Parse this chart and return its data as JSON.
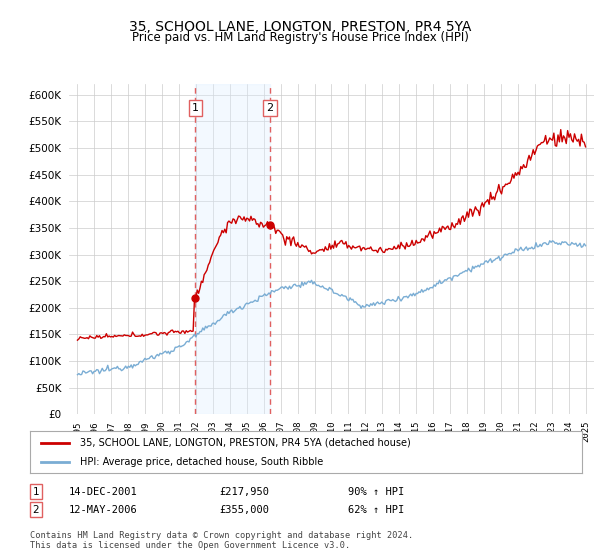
{
  "title": "35, SCHOOL LANE, LONGTON, PRESTON, PR4 5YA",
  "subtitle": "Price paid vs. HM Land Registry's House Price Index (HPI)",
  "sale1_date": 2001.95,
  "sale1_price": 217950,
  "sale2_date": 2006.37,
  "sale2_price": 355000,
  "sale1_display": "14-DEC-2001",
  "sale1_price_display": "£217,950",
  "sale1_hpi": "90% ↑ HPI",
  "sale2_display": "12-MAY-2006",
  "sale2_price_display": "£355,000",
  "sale2_hpi": "62% ↑ HPI",
  "line_color_property": "#cc0000",
  "line_color_hpi": "#7aadd4",
  "shade_color": "#ddeeff",
  "vline_color": "#e06060",
  "legend_label_property": "35, SCHOOL LANE, LONGTON, PRESTON, PR4 5YA (detached house)",
  "legend_label_hpi": "HPI: Average price, detached house, South Ribble",
  "footer": "Contains HM Land Registry data © Crown copyright and database right 2024.\nThis data is licensed under the Open Government Licence v3.0.",
  "ylim": [
    0,
    620000
  ],
  "xlim": [
    1994.5,
    2025.5
  ],
  "background_color": "#ffffff",
  "grid_color": "#cccccc"
}
